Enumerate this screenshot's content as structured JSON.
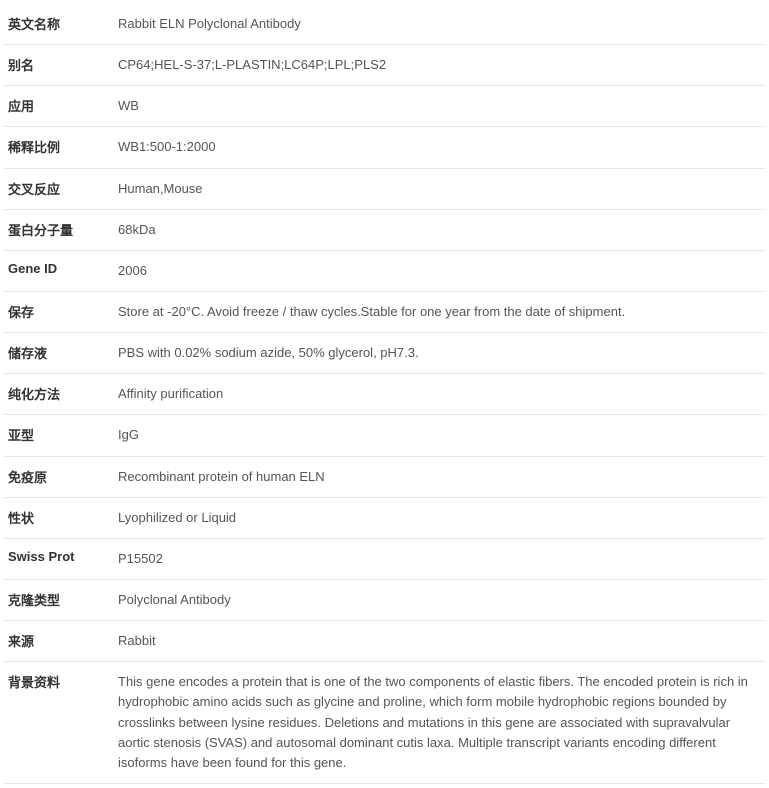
{
  "rows": [
    {
      "label": "英文名称",
      "value": "Rabbit ELN Polyclonal Antibody"
    },
    {
      "label": "别名",
      "value": "CP64;HEL-S-37;L-PLASTIN;LC64P;LPL;PLS2"
    },
    {
      "label": "应用",
      "value": "WB"
    },
    {
      "label": "稀释比例",
      "value": "WB1:500-1:2000"
    },
    {
      "label": "交叉反应",
      "value": "Human,Mouse"
    },
    {
      "label": "蛋白分子量",
      "value": "68kDa"
    },
    {
      "label": "Gene ID",
      "value": "2006"
    },
    {
      "label": "保存",
      "value": "Store at -20°C. Avoid freeze / thaw cycles.Stable for one year from the date of shipment."
    },
    {
      "label": "储存液",
      "value": "PBS with 0.02% sodium azide, 50% glycerol, pH7.3."
    },
    {
      "label": "纯化方法",
      "value": "Affinity purification"
    },
    {
      "label": "亚型",
      "value": "IgG"
    },
    {
      "label": "免疫原",
      "value": "Recombinant protein of human ELN"
    },
    {
      "label": "性状",
      "value": "Lyophilized or Liquid"
    },
    {
      "label": "Swiss Prot",
      "value": "P15502"
    },
    {
      "label": "克隆类型",
      "value": "Polyclonal Antibody"
    },
    {
      "label": "来源",
      "value": "Rabbit"
    },
    {
      "label": "背景资料",
      "value": "This gene encodes a protein that is one of the two components of elastic fibers. The encoded protein is rich in hydrophobic amino acids such as glycine and proline, which form mobile hydrophobic regions bounded by crosslinks between lysine residues. Deletions and mutations in this gene are associated with supravalvular aortic stenosis (SVAS) and autosomal dominant cutis laxa. Multiple transcript variants encoding different isoforms have been found for this gene."
    }
  ]
}
